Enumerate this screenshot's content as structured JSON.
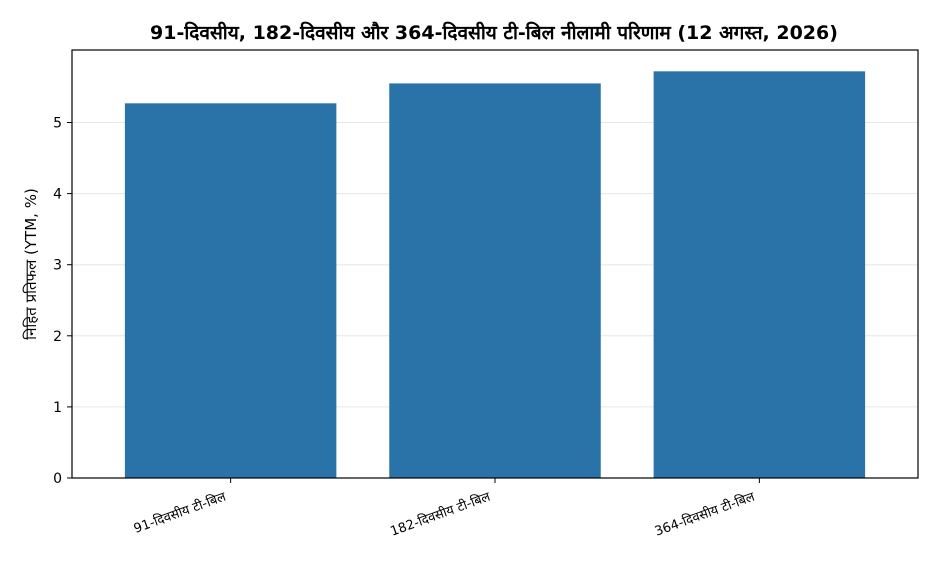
{
  "chart_data": {
    "type": "bar",
    "title": "91-दिवसीय, 182-दिवसीय और 364-दिवसीय टी-बिल नीलामी परिणाम (12 अगस्त, 2026)",
    "xlabel": "",
    "ylabel": "निहित प्रतिफल (YTM, %)",
    "categories": [
      "91-दिवसीय टी-बिल",
      "182-दिवसीय टी-बिल",
      "364-दिवसीय टी-बिल"
    ],
    "values": [
      5.27,
      5.55,
      5.72
    ],
    "ylim": [
      0,
      6.02
    ],
    "yticks": [
      0,
      1,
      2,
      3,
      4,
      5
    ],
    "grid": true,
    "bar_color": "#2a73a8",
    "grid_color": "#e6e6e6"
  }
}
